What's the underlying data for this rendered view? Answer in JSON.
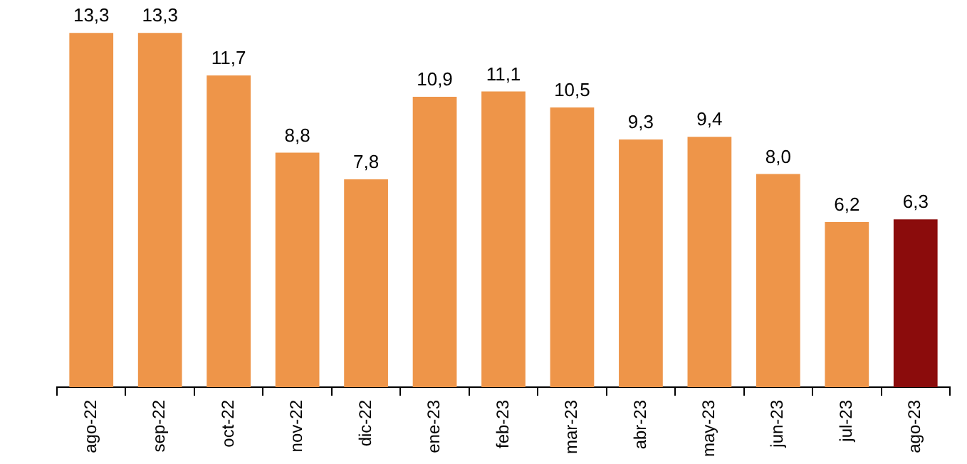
{
  "chart_data": {
    "type": "bar",
    "categories": [
      "ago-22",
      "sep-22",
      "oct-22",
      "nov-22",
      "dic-22",
      "ene-23",
      "feb-23",
      "mar-23",
      "abr-23",
      "may-23",
      "jun-23",
      "jul-23",
      "ago-23"
    ],
    "values": [
      13.3,
      13.3,
      11.7,
      8.8,
      7.8,
      10.9,
      11.1,
      10.5,
      9.3,
      9.4,
      8.0,
      6.2,
      6.3
    ],
    "colors": [
      "#ee9549",
      "#ee9549",
      "#ee9549",
      "#ee9549",
      "#ee9549",
      "#ee9549",
      "#ee9549",
      "#ee9549",
      "#ee9549",
      "#ee9549",
      "#ee9549",
      "#ee9549",
      "#8b0c0c"
    ],
    "value_labels": [
      "13,3",
      "13,3",
      "11,7",
      "8,8",
      "7,8",
      "10,9",
      "11,1",
      "10,5",
      "9,3",
      "9,4",
      "8,0",
      "6,2",
      "6,3"
    ],
    "grid": false,
    "legend": false,
    "tick_labels": "x"
  }
}
